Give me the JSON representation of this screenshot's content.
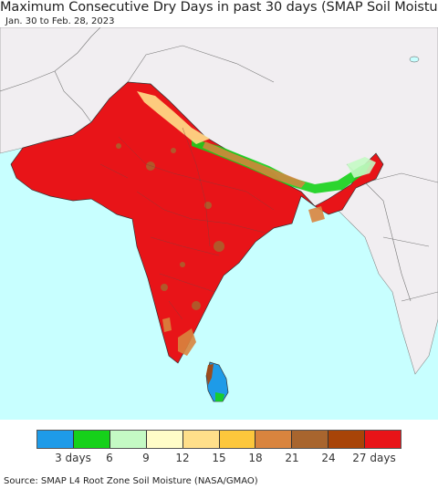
{
  "header": {
    "title": "Maximum Consecutive Dry Days in past 30 days (SMAP Soil Moisture)",
    "date_range": "Jan. 30 to Feb. 28, 2023"
  },
  "legend": {
    "colors": [
      "#1e9be8",
      "#16d11a",
      "#c4fac4",
      "#fffcc8",
      "#ffdf8a",
      "#fcc73c",
      "#d9843e",
      "#a8652e",
      "#a84408",
      "#e81418"
    ],
    "labels": [
      "3 days",
      "6",
      "9",
      "12",
      "15",
      "18",
      "21",
      "24",
      "27 days"
    ]
  },
  "map": {
    "ocean_color": "#c8ffff",
    "land_color": "#f1eef1",
    "dominant_color": "#e81418"
  },
  "footer": {
    "source": "Source: SMAP L4 Root Zone Soil Moisture (NASA/GMAO)"
  }
}
